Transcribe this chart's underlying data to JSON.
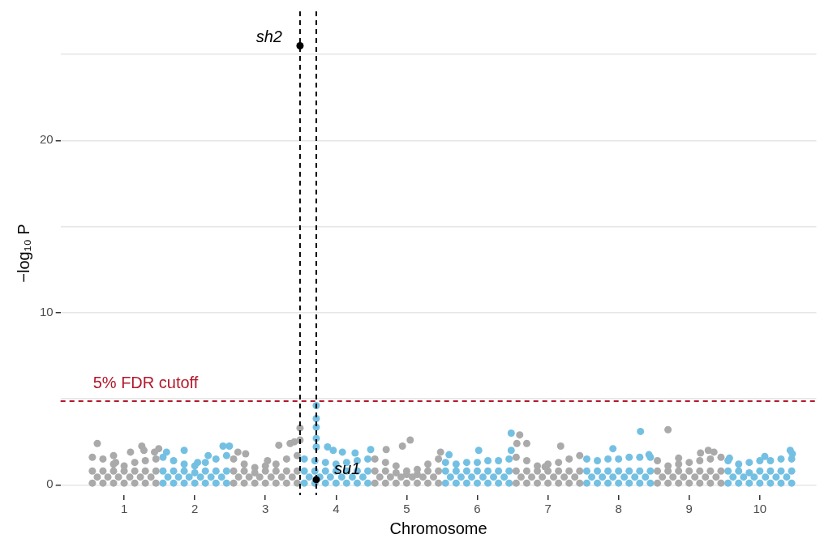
{
  "chart_data": {
    "type": "scatter",
    "xlabel": "Chromosome",
    "ylabel": "−log₁₀ P",
    "xlim": [
      0.1,
      10.8
    ],
    "xticks": [
      1,
      2,
      3,
      4,
      5,
      6,
      7,
      8,
      9,
      10
    ],
    "ylim": [
      -0.6,
      27.5
    ],
    "yticks": [
      0,
      {
        "value": 5,
        "label": null
      },
      10,
      {
        "value": 15,
        "label": null
      },
      20,
      {
        "value": 25,
        "label": null
      }
    ],
    "grid": "y",
    "legend": false,
    "marker": "circle",
    "series": [
      {
        "color": "#aaaaaa",
        "x": [
          0.55,
          0.7,
          0.85,
          1,
          1.15,
          1.3,
          1.45,
          2.55,
          2.7,
          2.85,
          3,
          3.15,
          3.3,
          3.45,
          4.55,
          4.7,
          4.85,
          5,
          5.15,
          5.3,
          5.45,
          6.55,
          6.7,
          6.85,
          7,
          7.15,
          7.3,
          7.45,
          8.55,
          8.7,
          8.85,
          9,
          9.15,
          9.3,
          9.45
        ],
        "values": [
          0.1,
          0.1,
          0.1,
          0.1,
          0.1,
          0.1,
          0.1,
          0.1,
          0.1,
          0.1,
          0.1,
          0.1,
          0.1,
          0.1,
          0.1,
          0.1,
          0.1,
          0.1,
          0.1,
          0.1,
          0.1,
          0.1,
          0.1,
          0.1,
          0.1,
          0.1,
          0.1,
          0.1,
          0.1,
          0.1,
          0.1,
          0.1,
          0.1,
          0.1,
          0.1
        ]
      },
      {
        "color": "#aaaaaa",
        "x": [
          0.62,
          0.77,
          0.92,
          1.08,
          1.23,
          1.38,
          2.62,
          2.77,
          2.92,
          3.08,
          3.23,
          3.38,
          4.62,
          4.77,
          4.92,
          5.08,
          5.23,
          5.38,
          6.62,
          6.77,
          6.92,
          7.08,
          7.23,
          7.38,
          8.62,
          8.77,
          8.92,
          9.08,
          9.23,
          9.38
        ],
        "values": [
          0.45,
          0.45,
          0.45,
          0.45,
          0.45,
          0.45,
          0.45,
          0.45,
          0.45,
          0.45,
          0.45,
          0.45,
          0.45,
          0.45,
          0.45,
          0.45,
          0.45,
          0.45,
          0.45,
          0.45,
          0.45,
          0.45,
          0.45,
          0.45,
          0.45,
          0.45,
          0.45,
          0.45,
          0.45,
          0.45
        ]
      },
      {
        "color": "#aaaaaa",
        "x": [
          0.55,
          0.7,
          0.85,
          1,
          1.15,
          1.3,
          1.45,
          2.55,
          2.7,
          2.85,
          3,
          3.15,
          3.3,
          3.45,
          4.55,
          4.7,
          4.85,
          5,
          5.15,
          5.3,
          5.45,
          6.55,
          6.7,
          6.85,
          7,
          7.15,
          7.3,
          7.45,
          8.55,
          8.7,
          8.85,
          9,
          9.15,
          9.3,
          9.45
        ],
        "values": [
          0.8,
          0.8,
          0.8,
          0.8,
          0.8,
          0.8,
          0.8,
          0.8,
          0.8,
          0.7,
          0.8,
          0.8,
          0.8,
          0.8,
          0.8,
          0.8,
          0.7,
          0.6,
          0.6,
          0.8,
          0.8,
          0.8,
          0.8,
          0.8,
          0.8,
          0.8,
          0.8,
          0.8,
          0.8,
          0.8,
          0.8,
          0.8,
          0.8,
          0.8,
          0.8
        ]
      },
      {
        "color": "#aaaaaa",
        "x": [
          0.55,
          0.7,
          0.85,
          1,
          1.15,
          1.3,
          1.45,
          2.55,
          2.7,
          2.85,
          3,
          3.15,
          3.3,
          3.45,
          4.55,
          4.7,
          4.85,
          5,
          5.15,
          5.3,
          5.45,
          6.55,
          6.7,
          6.85,
          7,
          7.15,
          7.3,
          7.45,
          8.55,
          8.7,
          8.85,
          9,
          9.15,
          9.3,
          9.45
        ],
        "values": [
          1.6,
          1.5,
          1.2,
          1.1,
          1.3,
          1.4,
          1.5,
          1.5,
          1.2,
          1.0,
          1.1,
          1.2,
          1.5,
          1.7,
          1.5,
          1.3,
          1.1,
          0.8,
          0.9,
          1.2,
          1.5,
          1.6,
          1.4,
          1.1,
          1.2,
          1.3,
          1.5,
          1.7,
          1.4,
          1.1,
          1.2,
          1.3,
          1.4,
          1.5,
          1.6
        ]
      },
      {
        "color": "#aaaaaa",
        "x": [
          0.62,
          0.85,
          0.88,
          1.09,
          1.25,
          1.28,
          1.43,
          1.49,
          2.61,
          2.72,
          3.03,
          3.19,
          3.35,
          3.41,
          3.49,
          3.49,
          4.71,
          4.94,
          5.05,
          5.48,
          6.6,
          6.56,
          6.7,
          7.18,
          6.96,
          8.7,
          8.85,
          9.16,
          9.27,
          9.35
        ],
        "values": [
          2.4,
          1.7,
          1.3,
          1.9,
          2.25,
          2.0,
          1.9,
          2.1,
          1.9,
          1.8,
          1.4,
          2.3,
          2.4,
          2.5,
          3.3,
          2.6,
          2.05,
          2.25,
          2.6,
          1.9,
          2.9,
          2.4,
          2.4,
          2.25,
          1.05,
          3.2,
          1.55,
          1.85,
          2.0,
          1.9
        ]
      },
      {
        "color": "#74c0e3",
        "x": [
          1.55,
          1.7,
          1.85,
          2,
          2.15,
          2.3,
          2.45,
          3.55,
          3.7,
          3.85,
          4,
          4.15,
          4.3,
          4.45,
          5.55,
          5.7,
          5.85,
          6,
          6.15,
          6.3,
          6.45,
          7.55,
          7.7,
          7.85,
          8,
          8.15,
          8.3,
          8.45,
          9.55,
          9.7,
          9.85,
          10,
          10.15,
          10.3,
          10.45
        ],
        "values": [
          0.1,
          0.1,
          0.1,
          0.1,
          0.1,
          0.1,
          0.1,
          0.1,
          0.1,
          0.1,
          0.1,
          0.1,
          0.1,
          0.1,
          0.1,
          0.1,
          0.1,
          0.1,
          0.1,
          0.1,
          0.1,
          0.1,
          0.1,
          0.1,
          0.1,
          0.1,
          0.1,
          0.1,
          0.1,
          0.1,
          0.1,
          0.1,
          0.1,
          0.1,
          0.1
        ]
      },
      {
        "color": "#74c0e3",
        "x": [
          1.62,
          1.77,
          1.92,
          2.08,
          2.23,
          2.38,
          3.62,
          3.77,
          3.92,
          4.08,
          4.23,
          4.38,
          5.62,
          5.77,
          5.92,
          6.08,
          6.23,
          6.38,
          7.62,
          7.77,
          7.92,
          8.08,
          8.23,
          8.38,
          9.62,
          9.77,
          9.92,
          10.08,
          10.23,
          10.38
        ],
        "values": [
          0.45,
          0.45,
          0.45,
          0.45,
          0.45,
          0.45,
          0.45,
          0.45,
          0.45,
          0.45,
          0.45,
          0.45,
          0.45,
          0.45,
          0.45,
          0.45,
          0.45,
          0.45,
          0.45,
          0.45,
          0.45,
          0.45,
          0.45,
          0.45,
          0.45,
          0.45,
          0.45,
          0.45,
          0.45,
          0.45
        ]
      },
      {
        "color": "#74c0e3",
        "x": [
          1.55,
          1.7,
          1.85,
          2,
          2.15,
          2.3,
          2.45,
          3.55,
          3.7,
          3.85,
          4,
          4.15,
          4.3,
          4.45,
          5.55,
          5.7,
          5.85,
          6,
          6.15,
          6.3,
          6.45,
          7.55,
          7.7,
          7.85,
          8,
          8.15,
          8.3,
          8.45,
          9.55,
          9.7,
          9.85,
          10,
          10.15,
          10.3,
          10.45
        ],
        "values": [
          0.8,
          0.8,
          0.8,
          0.7,
          0.8,
          0.8,
          0.8,
          0.8,
          0.8,
          0.8,
          0.8,
          0.8,
          0.8,
          0.8,
          0.8,
          0.8,
          0.8,
          0.8,
          0.8,
          0.8,
          0.8,
          0.8,
          0.8,
          0.8,
          0.8,
          0.8,
          0.8,
          0.8,
          0.8,
          0.8,
          0.7,
          0.8,
          0.8,
          0.8,
          0.8
        ]
      },
      {
        "color": "#74c0e3",
        "x": [
          1.55,
          1.7,
          1.85,
          2,
          2.15,
          2.3,
          2.45,
          3.55,
          3.7,
          3.85,
          4,
          4.15,
          4.3,
          4.45,
          5.55,
          5.7,
          5.85,
          6,
          6.15,
          6.3,
          6.45,
          7.55,
          7.7,
          7.85,
          8,
          8.15,
          8.3,
          8.45,
          9.55,
          9.7,
          9.85,
          10,
          10.15,
          10.3,
          10.45
        ],
        "values": [
          1.6,
          1.4,
          1.2,
          1.1,
          1.3,
          1.5,
          1.7,
          1.5,
          1.4,
          1.3,
          1.2,
          1.3,
          1.4,
          1.5,
          1.3,
          1.2,
          1.3,
          1.3,
          1.4,
          1.4,
          1.5,
          1.5,
          1.4,
          1.5,
          1.5,
          1.6,
          1.6,
          1.6,
          1.4,
          1.2,
          1.3,
          1.4,
          1.4,
          1.5,
          1.5
        ]
      },
      {
        "color": "#74c0e3",
        "x": [
          1.6,
          1.85,
          2.04,
          2.19,
          2.4,
          2.49,
          3.72,
          3.72,
          3.72,
          3.72,
          3.72,
          3.88,
          3.96,
          4.09,
          4.27,
          4.49,
          5.6,
          6.02,
          6.48,
          6.48,
          7.92,
          8.31,
          8.43,
          9.57,
          10.07,
          10.43,
          10.46
        ],
        "values": [
          1.9,
          2.0,
          1.3,
          1.7,
          2.25,
          2.25,
          4.6,
          3.85,
          3.35,
          2.7,
          2.2,
          2.2,
          2.0,
          1.9,
          1.85,
          2.05,
          1.75,
          2.0,
          3.0,
          2.0,
          2.1,
          3.1,
          1.75,
          1.55,
          1.65,
          2.0,
          1.8
        ]
      },
      {
        "color": "#000000",
        "x": [
          3.49,
          3.72
        ],
        "values": [
          25.5,
          0.3
        ]
      }
    ],
    "ref_lines": [
      {
        "axis": "y",
        "value": 4.86,
        "label": "5% FDR cutoff",
        "color": "#b2182b",
        "line_style": "dashed"
      },
      {
        "axis": "x",
        "value": 3.49,
        "color": "#000000",
        "line_style": "dashed"
      },
      {
        "axis": "x",
        "value": 3.72,
        "color": "#000000",
        "line_style": "dashed"
      }
    ],
    "annotations": [
      {
        "text": "sh2",
        "x": 3.49,
        "y": 25.5
      },
      {
        "text": "su1",
        "x": 3.72,
        "y": 0.3
      }
    ]
  }
}
